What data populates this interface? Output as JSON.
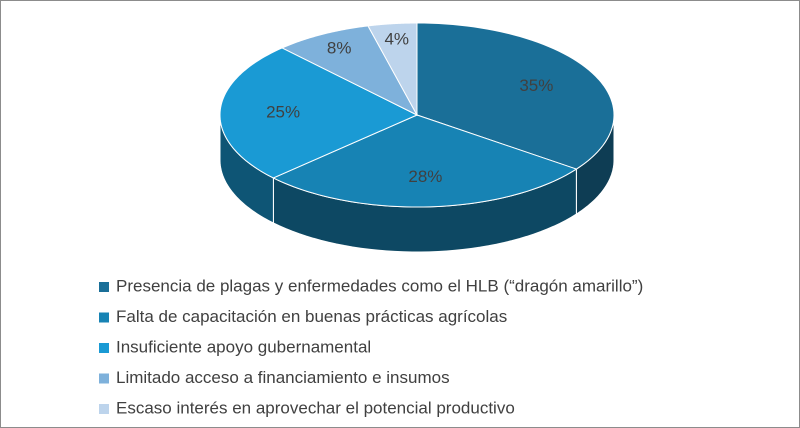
{
  "chart_data": {
    "type": "pie",
    "categories": [
      "Presencia de plagas y enfermedades como el HLB (“dragón amarillo”)",
      "Falta de capacitación en buenas prácticas agrícolas",
      "Insuficiente apoyo gubernamental",
      "Limitado acceso a financiamiento e insumos",
      "Escaso interés en aprovechar el potencial productivo"
    ],
    "values": [
      35,
      28,
      25,
      8,
      4
    ],
    "value_labels": [
      "35%",
      "28%",
      "25%",
      "8%",
      "4%"
    ],
    "colors": [
      "#1a6f98",
      "#1783b4",
      "#1a9ad4",
      "#7eb1db",
      "#bdd4ec"
    ],
    "legend": "bottom"
  }
}
